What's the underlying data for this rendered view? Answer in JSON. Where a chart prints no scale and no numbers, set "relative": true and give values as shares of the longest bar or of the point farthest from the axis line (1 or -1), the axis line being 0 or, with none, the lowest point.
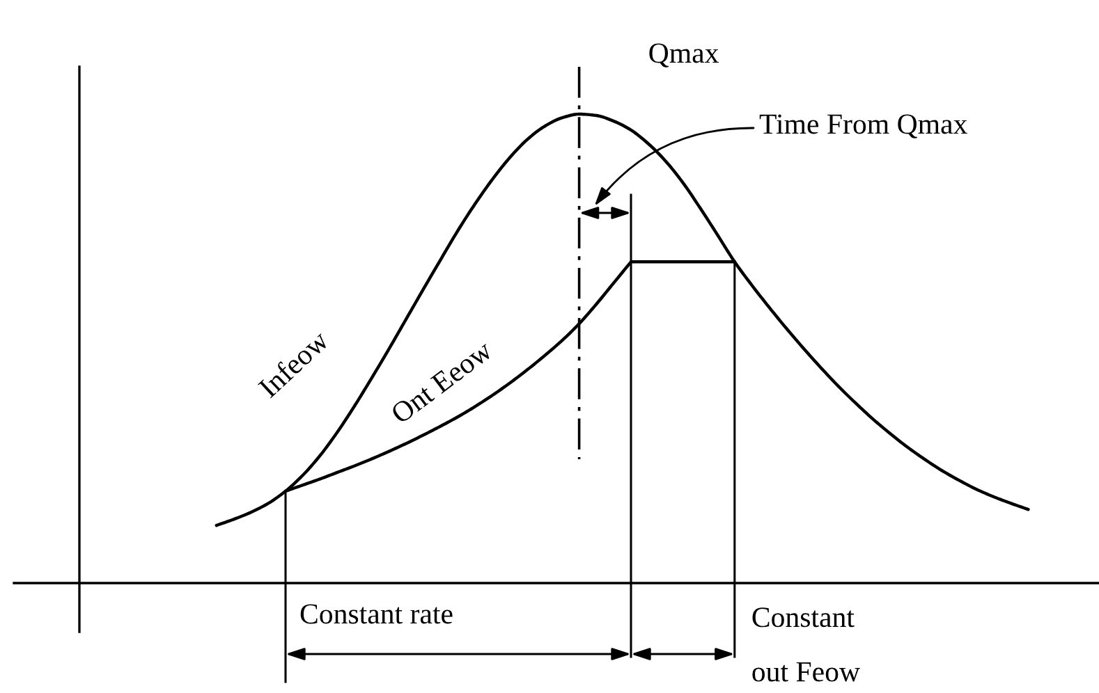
{
  "chart_data": {
    "type": "line",
    "relative": true,
    "categories": [
      null,
      null,
      null,
      null,
      null,
      null,
      null,
      null,
      null,
      null,
      null,
      null,
      null,
      null,
      null,
      null,
      null,
      null,
      null,
      null,
      null,
      null,
      null,
      null,
      null,
      null,
      null,
      null,
      null,
      null,
      null,
      null,
      null,
      null,
      null,
      null,
      null,
      null,
      null,
      null,
      null,
      null,
      null,
      null,
      null,
      null,
      null,
      null
    ],
    "series": [
      {
        "name": "Infeow",
        "color": "#000000",
        "values": [
          0.123,
          0.136,
          0.151,
          0.17,
          0.196,
          0.23,
          0.272,
          0.322,
          0.378,
          0.438,
          0.5,
          0.564,
          0.628,
          0.691,
          0.753,
          0.81,
          0.862,
          0.908,
          0.946,
          0.974,
          0.992,
          1,
          0.997,
          0.985,
          0.966,
          0.937,
          0.9,
          0.854,
          0.8,
          0.743,
          0.685,
          0.635,
          0.588,
          0.543,
          0.5,
          0.459,
          0.42,
          0.384,
          0.35,
          0.319,
          0.29,
          0.264,
          0.24,
          0.219,
          0.2,
          0.184,
          0.17,
          0.157
        ]
      },
      {
        "name": "Ont Eeow",
        "color": "#000000",
        "values": [
          null,
          null,
          null,
          null,
          0.196,
          0.209,
          0.222,
          0.236,
          0.25,
          0.265,
          0.281,
          0.298,
          0.316,
          0.335,
          0.355,
          0.377,
          0.401,
          0.427,
          0.455,
          0.485,
          0.517,
          0.553,
          0.595,
          0.64,
          0.685,
          0.685,
          0.685,
          0.685,
          0.685,
          0.685,
          0.685,
          null,
          null,
          null,
          null,
          null,
          null,
          null,
          null,
          null,
          null,
          null,
          null,
          null,
          null,
          null,
          null,
          null
        ]
      }
    ],
    "annotations": [
      "Qmax",
      "Time From Qmax",
      "Constant rate",
      "Constant\nout Feow"
    ]
  }
}
